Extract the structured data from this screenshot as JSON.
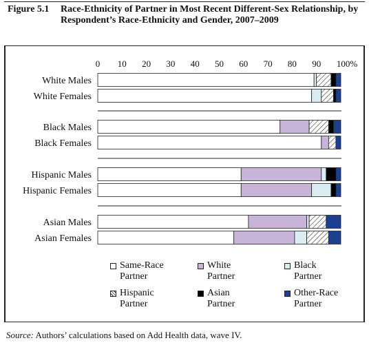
{
  "figure": {
    "number": "Figure 5.1",
    "title": "Race-Ethnicity of Partner in Most Recent Different-Sex Relationship, by Respondent’s Race-Ethnicity and Gender, 2007–2009"
  },
  "source": {
    "prefix": "Source:",
    "text": " Authors’ calculations based on Add Health data, wave IV."
  },
  "colors": {
    "same_race": "#ffffff",
    "white": "#c8b4d8",
    "black": "#d9ecf2",
    "hispanic": "hatch",
    "asian": "#000000",
    "other_race": "#1c3f8f"
  },
  "legend": [
    {
      "key": "same_race",
      "line1": "Same-Race",
      "line2": "Partner"
    },
    {
      "key": "white",
      "line1": "White",
      "line2": "Partner"
    },
    {
      "key": "black",
      "line1": "Black",
      "line2": "Partner"
    },
    {
      "key": "hispanic",
      "line1": "Hispanic",
      "line2": "Partner"
    },
    {
      "key": "asian",
      "line1": "Asian",
      "line2": "Partner"
    },
    {
      "key": "other_race",
      "line1": "Other-Race",
      "line2": "Partner"
    }
  ],
  "chart_data": {
    "type": "bar",
    "orientation": "horizontal",
    "stacked": true,
    "xlim": [
      0,
      100
    ],
    "x_ticks": [
      "0",
      "10",
      "20",
      "30",
      "40",
      "50",
      "60",
      "70",
      "80",
      "90",
      "100%"
    ],
    "categories": [
      "White Males",
      "White Females",
      "Black Males",
      "Black Females",
      "Hispanic Males",
      "Hispanic Females",
      "Asian Males",
      "Asian Females"
    ],
    "groups": [
      [
        0,
        1
      ],
      [
        2,
        3
      ],
      [
        4,
        5
      ],
      [
        6,
        7
      ]
    ],
    "series": [
      {
        "key": "same_race",
        "name": "Same-Race Partner",
        "values": [
          89,
          88,
          75,
          92,
          59,
          59,
          62,
          56
        ]
      },
      {
        "key": "white",
        "name": "White Partner",
        "values": [
          0,
          0,
          12,
          3,
          33,
          29,
          24,
          25
        ]
      },
      {
        "key": "black",
        "name": "Black Partner",
        "values": [
          1,
          4,
          0,
          0,
          2,
          8,
          1,
          5
        ]
      },
      {
        "key": "hispanic",
        "name": "Hispanic Partner",
        "values": [
          6,
          5,
          8,
          3,
          0,
          0,
          7,
          9
        ]
      },
      {
        "key": "asian",
        "name": "Asian Partner",
        "values": [
          2,
          1,
          2,
          0,
          4,
          2,
          0,
          0
        ]
      },
      {
        "key": "other_race",
        "name": "Other-Race Partner",
        "values": [
          2,
          2,
          3,
          2,
          2,
          2,
          6,
          5
        ]
      }
    ]
  }
}
